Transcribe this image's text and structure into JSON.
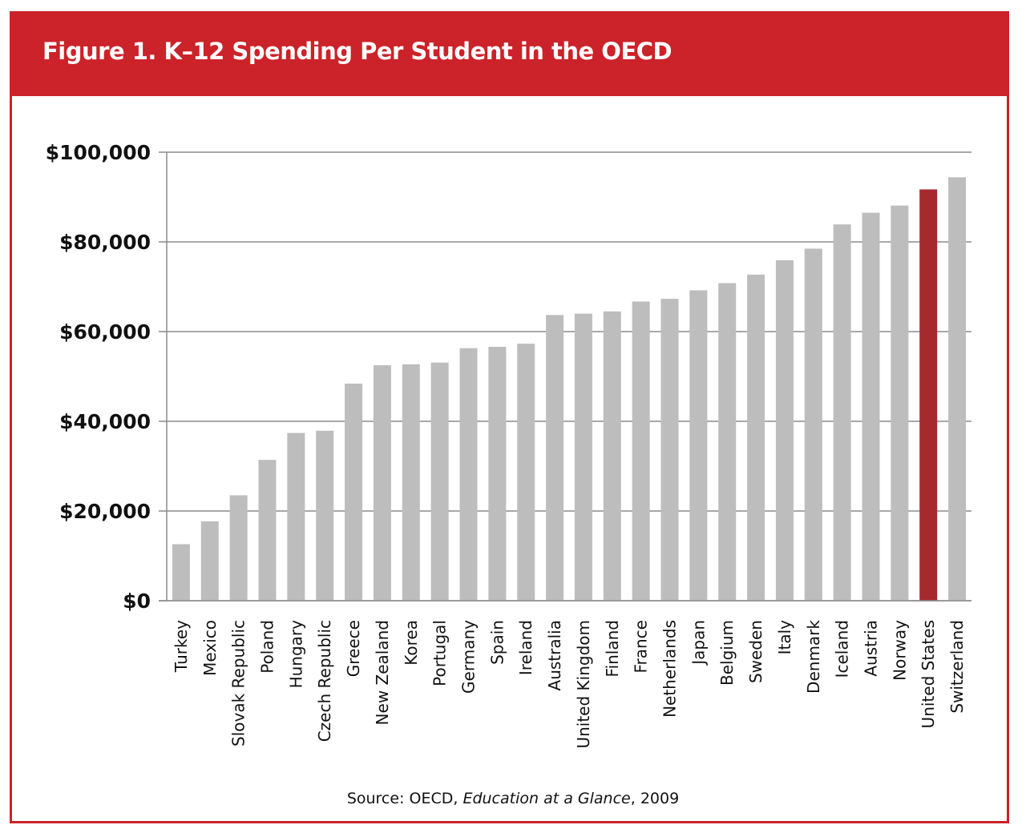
{
  "header": {
    "title": "Figure 1. K–12 Spending Per Student in the OECD"
  },
  "source": {
    "prefix": "Source: OECD, ",
    "title": "Education at a Glance",
    "suffix": ", 2009"
  },
  "colors": {
    "brand": "#cc2229",
    "bar": "#bdbdbd",
    "highlight": "#a6292e",
    "grid": "#8c8c8c"
  },
  "chart_data": {
    "type": "bar",
    "title": "Figure 1. K–12 Spending Per Student in the OECD",
    "xlabel": "",
    "ylabel": "",
    "ylim": [
      0,
      100000
    ],
    "yticks": [
      0,
      20000,
      40000,
      60000,
      80000,
      100000
    ],
    "ytick_labels": [
      "$0",
      "$20,000",
      "$40,000",
      "$60,000",
      "$80,000",
      "$100,000"
    ],
    "grid": true,
    "highlight": "United States",
    "categories": [
      "Turkey",
      "Mexico",
      "Slovak Republic",
      "Poland",
      "Hungary",
      "Czech Republic",
      "Greece",
      "New Zealand",
      "Korea",
      "Portugal",
      "Germany",
      "Spain",
      "Ireland",
      "Australia",
      "United Kingdom",
      "Finland",
      "France",
      "Netherlands",
      "Japan",
      "Belgium",
      "Sweden",
      "Italy",
      "Denmark",
      "Iceland",
      "Austria",
      "Norway",
      "United States",
      "Switzerland"
    ],
    "values": [
      12600,
      17700,
      23500,
      31400,
      37400,
      37900,
      48400,
      52500,
      52700,
      53100,
      56300,
      56600,
      57300,
      63700,
      64000,
      64500,
      66700,
      67300,
      69200,
      70800,
      72700,
      75900,
      78500,
      83900,
      86500,
      88100,
      91700,
      94400
    ]
  }
}
